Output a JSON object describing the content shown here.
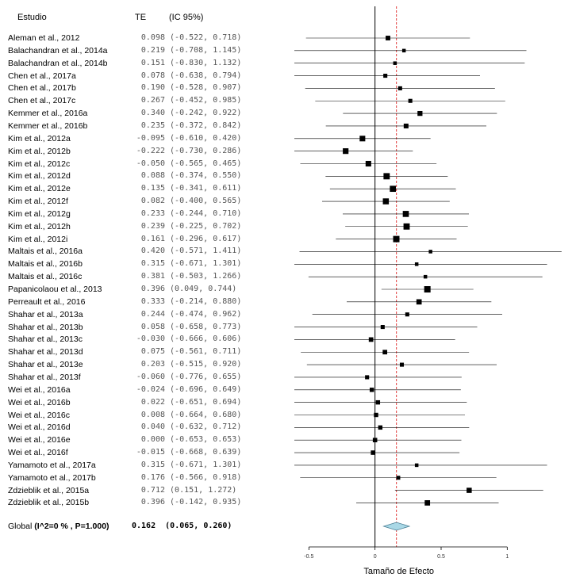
{
  "headers": {
    "study": "Estudio",
    "te": "TE",
    "ci": "(IC 95%)"
  },
  "chart_data": {
    "type": "forest",
    "xlabel": "Tamaño de Efecto",
    "xticks": [
      "-0.5",
      "0",
      "0.5",
      "1"
    ],
    "xlim": [
      -0.61,
      1.43
    ],
    "reference_line": 0,
    "summary_line": 0.162,
    "studies": [
      {
        "label": "Aleman et al., 2012",
        "te": "0.098",
        "ci": "(-0.522, 0.718)",
        "est": 0.098,
        "lo": -0.522,
        "hi": 0.718
      },
      {
        "label": "Balachandran et al., 2014a",
        "te": "0.219",
        "ci": "(-0.708, 1.145)",
        "est": 0.219,
        "lo": -0.708,
        "hi": 1.145
      },
      {
        "label": "Balachandran et al., 2014b",
        "te": "0.151",
        "ci": "(-0.830, 1.132)",
        "est": 0.151,
        "lo": -0.83,
        "hi": 1.132
      },
      {
        "label": "Chen et al., 2017a",
        "te": "0.078",
        "ci": "(-0.638, 0.794)",
        "est": 0.078,
        "lo": -0.638,
        "hi": 0.794
      },
      {
        "label": "Chen et al., 2017b",
        "te": "0.190",
        "ci": "(-0.528, 0.907)",
        "est": 0.19,
        "lo": -0.528,
        "hi": 0.907
      },
      {
        "label": "Chen et al., 2017c",
        "te": "0.267",
        "ci": "(-0.452, 0.985)",
        "est": 0.267,
        "lo": -0.452,
        "hi": 0.985
      },
      {
        "label": "Kemmer et al., 2016a",
        "te": "0.340",
        "ci": "(-0.242, 0.922)",
        "est": 0.34,
        "lo": -0.242,
        "hi": 0.922
      },
      {
        "label": "Kemmer et al., 2016b",
        "te": "0.235",
        "ci": "(-0.372, 0.842)",
        "est": 0.235,
        "lo": -0.372,
        "hi": 0.842
      },
      {
        "label": "Kim et al., 2012a",
        "te": "-0.095",
        "ci": "(-0.610, 0.420)",
        "est": -0.095,
        "lo": -0.61,
        "hi": 0.42
      },
      {
        "label": "Kim et al., 2012b",
        "te": "-0.222",
        "ci": "(-0.730, 0.286)",
        "est": -0.222,
        "lo": -0.73,
        "hi": 0.286
      },
      {
        "label": "Kim et al., 2012c",
        "te": "-0.050",
        "ci": "(-0.565, 0.465)",
        "est": -0.05,
        "lo": -0.565,
        "hi": 0.465
      },
      {
        "label": "Kim et al., 2012d",
        "te": "0.088",
        "ci": "(-0.374, 0.550)",
        "est": 0.088,
        "lo": -0.374,
        "hi": 0.55
      },
      {
        "label": "Kim et al., 2012e",
        "te": "0.135",
        "ci": "(-0.341, 0.611)",
        "est": 0.135,
        "lo": -0.341,
        "hi": 0.611
      },
      {
        "label": "Kim et al., 2012f",
        "te": "0.082",
        "ci": "(-0.400, 0.565)",
        "est": 0.082,
        "lo": -0.4,
        "hi": 0.565
      },
      {
        "label": "Kim et al., 2012g",
        "te": "0.233",
        "ci": "(-0.244, 0.710)",
        "est": 0.233,
        "lo": -0.244,
        "hi": 0.71
      },
      {
        "label": "Kim et al., 2012h",
        "te": "0.239",
        "ci": "(-0.225, 0.702)",
        "est": 0.239,
        "lo": -0.225,
        "hi": 0.702
      },
      {
        "label": "Kim et al., 2012i",
        "te": "0.161",
        "ci": "(-0.296, 0.617)",
        "est": 0.161,
        "lo": -0.296,
        "hi": 0.617
      },
      {
        "label": "Maltais et al., 2016a",
        "te": "0.420",
        "ci": "(-0.571, 1.411)",
        "est": 0.42,
        "lo": -0.571,
        "hi": 1.411
      },
      {
        "label": "Maltais et al., 2016b",
        "te": "0.315",
        "ci": "(-0.671, 1.301)",
        "est": 0.315,
        "lo": -0.671,
        "hi": 1.301
      },
      {
        "label": "Maltais et al., 2016c",
        "te": "0.381",
        "ci": "(-0.503, 1.266)",
        "est": 0.381,
        "lo": -0.503,
        "hi": 1.266
      },
      {
        "label": "Papanicolaou et al., 2013",
        "te": "0.396",
        "ci": "(0.049, 0.744)",
        "est": 0.396,
        "lo": 0.049,
        "hi": 0.744
      },
      {
        "label": "Perreault et al., 2016",
        "te": "0.333",
        "ci": "(-0.214, 0.880)",
        "est": 0.333,
        "lo": -0.214,
        "hi": 0.88
      },
      {
        "label": "Shahar et al., 2013a",
        "te": "0.244",
        "ci": "(-0.474, 0.962)",
        "est": 0.244,
        "lo": -0.474,
        "hi": 0.962
      },
      {
        "label": "Shahar et al., 2013b",
        "te": "0.058",
        "ci": "(-0.658, 0.773)",
        "est": 0.058,
        "lo": -0.658,
        "hi": 0.773
      },
      {
        "label": "Shahar et al., 2013c",
        "te": "-0.030",
        "ci": "(-0.666, 0.606)",
        "est": -0.03,
        "lo": -0.666,
        "hi": 0.606
      },
      {
        "label": "Shahar et al., 2013d",
        "te": "0.075",
        "ci": "(-0.561, 0.711)",
        "est": 0.075,
        "lo": -0.561,
        "hi": 0.711
      },
      {
        "label": "Shahar et al., 2013e",
        "te": "0.203",
        "ci": "(-0.515, 0.920)",
        "est": 0.203,
        "lo": -0.515,
        "hi": 0.92
      },
      {
        "label": "Shahar et al., 2013f",
        "te": "-0.060",
        "ci": "(-0.776, 0.655)",
        "est": -0.06,
        "lo": -0.776,
        "hi": 0.655
      },
      {
        "label": "Wei et al., 2016a",
        "te": "-0.024",
        "ci": "(-0.696, 0.649)",
        "est": -0.024,
        "lo": -0.696,
        "hi": 0.649
      },
      {
        "label": "Wei et al., 2016b",
        "te": "0.022",
        "ci": "(-0.651, 0.694)",
        "est": 0.022,
        "lo": -0.651,
        "hi": 0.694
      },
      {
        "label": "Wei et al., 2016c",
        "te": "0.008",
        "ci": "(-0.664, 0.680)",
        "est": 0.008,
        "lo": -0.664,
        "hi": 0.68
      },
      {
        "label": "Wei et al., 2016d",
        "te": "0.040",
        "ci": "(-0.632, 0.712)",
        "est": 0.04,
        "lo": -0.632,
        "hi": 0.712
      },
      {
        "label": "Wei et al., 2016e",
        "te": "0.000",
        "ci": "(-0.653, 0.653)",
        "est": 0.0,
        "lo": -0.653,
        "hi": 0.653
      },
      {
        "label": "Wei et al., 2016f",
        "te": "-0.015",
        "ci": "(-0.668, 0.639)",
        "est": -0.015,
        "lo": -0.668,
        "hi": 0.639
      },
      {
        "label": "Yamamoto et al., 2017a",
        "te": "0.315",
        "ci": "(-0.671, 1.301)",
        "est": 0.315,
        "lo": -0.671,
        "hi": 1.301
      },
      {
        "label": "Yamamoto et al., 2017b",
        "te": "0.176",
        "ci": "(-0.566, 0.918)",
        "est": 0.176,
        "lo": -0.566,
        "hi": 0.918
      },
      {
        "label": "Zdzieblik et al., 2015a",
        "te": "0.712",
        "ci": "(0.151, 1.272)",
        "est": 0.712,
        "lo": 0.151,
        "hi": 1.272
      },
      {
        "label": "Zdzieblik et al., 2015b",
        "te": "0.396",
        "ci": "(-0.142, 0.935)",
        "est": 0.396,
        "lo": -0.142,
        "hi": 0.935
      }
    ],
    "summary": {
      "label_prefix": "Global ",
      "label_stats": "(I^2=0 % , P=1.000)",
      "te": "0.162",
      "ci": "(0.065, 0.260)",
      "est": 0.162,
      "lo": 0.065,
      "hi": 0.26
    },
    "colors": {
      "ci_line": "#000000",
      "square": "#000000",
      "reference": "#000000",
      "summary_line": "#e23b3b",
      "diamond_fill": "#a9d8e6",
      "diamond_stroke": "#4a7f95"
    }
  }
}
